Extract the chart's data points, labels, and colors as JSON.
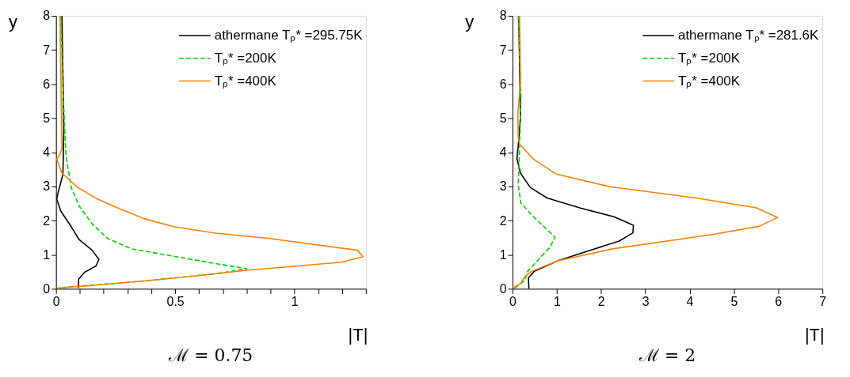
{
  "chart_data": [
    {
      "type": "line",
      "title": "ℳ = 0.75",
      "xlabel": "|T|",
      "ylabel": "y",
      "legend": "top right",
      "grid": false,
      "xlim": [
        0,
        1.3
      ],
      "xticks": [
        0,
        {
          "value": 0.1,
          "label": null
        },
        {
          "value": 0.2,
          "label": null
        },
        {
          "value": 0.3,
          "label": null
        },
        {
          "value": 0.4,
          "label": null
        },
        0.5,
        {
          "value": 0.6,
          "label": null
        },
        {
          "value": 0.7,
          "label": null
        },
        {
          "value": 0.8,
          "label": null
        },
        {
          "value": 0.9,
          "label": null
        },
        1,
        {
          "value": 1.1,
          "label": null
        },
        {
          "value": 1.2,
          "label": null
        },
        {
          "value": 1.3,
          "label": null
        }
      ],
      "ylim": [
        0,
        8
      ],
      "yticks": [
        0,
        1,
        2,
        3,
        4,
        5,
        6,
        7,
        8
      ],
      "series": [
        {
          "name": "athermane Tₚ* =295.75K",
          "color": "#000000",
          "line_style": "solid",
          "x": [
            0.025,
            0.033,
            0.029,
            0.009,
            0.003,
            0.02,
            0.064,
            0.097,
            0.152,
            0.18,
            0.168,
            0.119,
            0.095,
            0.095
          ],
          "values": [
            8,
            4.66,
            3.35,
            2.82,
            2.63,
            2.28,
            1.82,
            1.44,
            1.13,
            0.86,
            0.67,
            0.48,
            0.28,
            0.02
          ]
        },
        {
          "name": "Tₚ* =200K",
          "color": "#00cc00",
          "line_style": "dashed",
          "x": [
            0.02,
            0.033,
            0.042,
            0.064,
            0.097,
            0.152,
            0.218,
            0.317,
            0.504,
            0.67,
            0.8,
            0.67,
            0.34,
            0.03
          ],
          "values": [
            8,
            5.27,
            3.89,
            2.97,
            2.43,
            1.9,
            1.47,
            1.17,
            0.94,
            0.74,
            0.59,
            0.44,
            0.21,
            0.04
          ]
        },
        {
          "name": "Tₚ* =400K",
          "color": "#ff8000",
          "line_style": "solid",
          "x": [
            0.017,
            0.025,
            0.014,
            0.003,
            0.025,
            0.091,
            0.174,
            0.262,
            0.372,
            0.493,
            0.67,
            0.89,
            1.264,
            1.289,
            1.198,
            0.8,
            0.45,
            0.12,
            0.003
          ],
          "values": [
            8,
            4.1,
            3.9,
            3.8,
            3.39,
            2.97,
            2.63,
            2.36,
            2.05,
            1.82,
            1.63,
            1.48,
            1.13,
            0.94,
            0.78,
            0.54,
            0.28,
            0.08,
            0.02
          ]
        }
      ]
    },
    {
      "type": "line",
      "title": "ℳ = 2",
      "xlabel": "|T|",
      "ylabel": "y",
      "legend": "top right",
      "grid": false,
      "xlim": [
        0,
        7
      ],
      "xticks": [
        0,
        1,
        2,
        3,
        4,
        5,
        6,
        7
      ],
      "ylim": [
        0,
        8
      ],
      "yticks": [
        0,
        1,
        2,
        3,
        4,
        5,
        6,
        7,
        8
      ],
      "series": [
        {
          "name": "athermane Tₚ* =281.6K",
          "color": "#000000",
          "line_style": "solid",
          "x": [
            0.14,
            0.18,
            0.13,
            0.1,
            0.18,
            0.4,
            0.78,
            1.55,
            2.29,
            2.73,
            2.72,
            2.41,
            1.02,
            0.49,
            0.36,
            0.37
          ],
          "values": [
            8,
            5.04,
            4.2,
            3.82,
            3.39,
            2.97,
            2.66,
            2.36,
            2.11,
            1.86,
            1.64,
            1.4,
            0.82,
            0.51,
            0.32,
            0
          ]
        },
        {
          "name": "Tₚ* =200K",
          "color": "#00cc00",
          "line_style": "dashed",
          "x": [
            0.13,
            0.19,
            0.16,
            0.13,
            0.19,
            0.46,
            0.96,
            0.84,
            0.34,
            0.28,
            0.1,
            0.04
          ],
          "values": [
            8,
            5.66,
            4.12,
            3.05,
            2.51,
            2.13,
            1.51,
            1.21,
            0.51,
            0.25,
            0.07,
            0
          ]
        },
        {
          "name": "Tₚ* =400K",
          "color": "#ff8000",
          "line_style": "solid",
          "x": [
            0.16,
            0.18,
            0.12,
            0.13,
            0.16,
            0.49,
            0.99,
            2.2,
            4.15,
            5.51,
            5.99,
            5.57,
            4.51,
            2.26,
            1.02,
            0.43,
            0.28,
            0.19,
            0.01
          ],
          "values": [
            8,
            6.04,
            5.12,
            4.43,
            4.24,
            3.78,
            3.36,
            2.99,
            2.66,
            2.37,
            2.09,
            1.83,
            1.59,
            1.17,
            0.82,
            0.51,
            0.36,
            0.17,
            0.02
          ]
        }
      ]
    }
  ]
}
